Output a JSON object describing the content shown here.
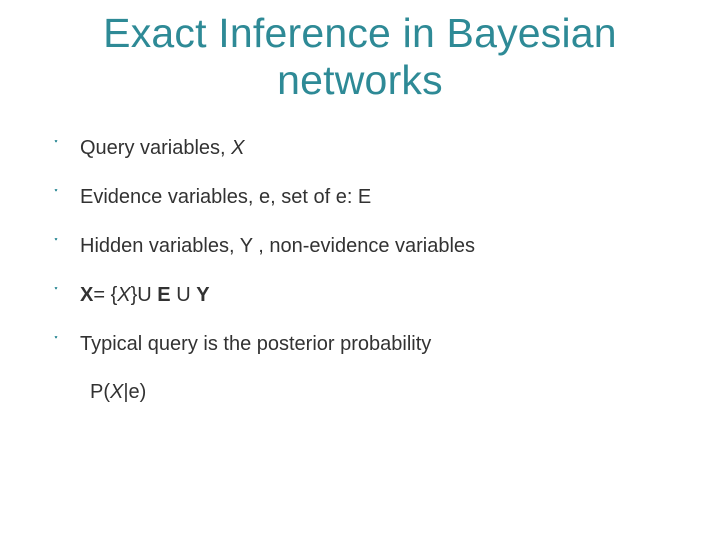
{
  "slide": {
    "title_line1": "Exact Inference in Bayesian",
    "title_line2": "networks",
    "title_color": "#2e8a96",
    "bullet_glyph": "་",
    "bullet_color": "#2e8a96",
    "text_color": "#323232",
    "background_color": "#ffffff",
    "title_fontsize": 41,
    "body_fontsize": 20,
    "bullets": [
      {
        "type": "plain",
        "text": "Query variables,  X",
        "italic_tail": true,
        "tail": "X",
        "head": "Query variables,  "
      },
      {
        "type": "plain",
        "text": "Evidence variables, e, set of e: E"
      },
      {
        "type": "plain",
        "text": "Hidden variables, Y , non-evidence variables"
      },
      {
        "type": "equation",
        "lhs": "X",
        "eq": "= {",
        "mid_italic": "X",
        "rest": "}U ",
        "bold1": "E",
        "u": " U ",
        "bold2": "Y"
      },
      {
        "type": "plain",
        "text": "Typical query is the posterior probability"
      }
    ],
    "sub_line": {
      "p": "P(",
      "x": "X",
      "tail": "|e)"
    }
  }
}
